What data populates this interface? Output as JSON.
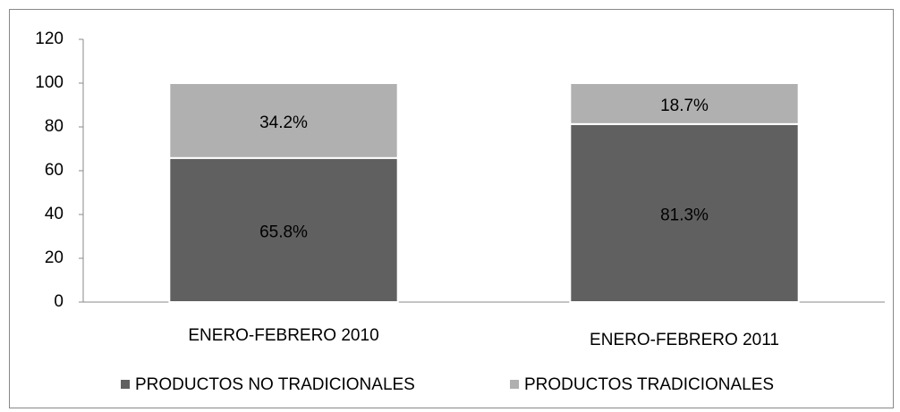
{
  "chart_data": {
    "type": "stacked_bar",
    "categories": [
      "ENERO-FEBRERO 2010",
      "ENERO-FEBRERO 2011"
    ],
    "series": [
      {
        "name": "PRODUCTOS NO TRADICIONALES",
        "color": "#606060",
        "values": [
          65.8,
          81.3
        ],
        "value_labels": [
          "65.8%",
          "81.3%"
        ]
      },
      {
        "name": "PRODUCTOS TRADICIONALES",
        "color": "#b0b0b0",
        "values": [
          34.2,
          18.7
        ],
        "value_labels": [
          "34.2%",
          "18.7%"
        ]
      }
    ],
    "ylim": [
      0,
      120
    ],
    "yticks": [
      0,
      20,
      40,
      60,
      80,
      100,
      120
    ],
    "grid": false,
    "legend": "bottom"
  }
}
